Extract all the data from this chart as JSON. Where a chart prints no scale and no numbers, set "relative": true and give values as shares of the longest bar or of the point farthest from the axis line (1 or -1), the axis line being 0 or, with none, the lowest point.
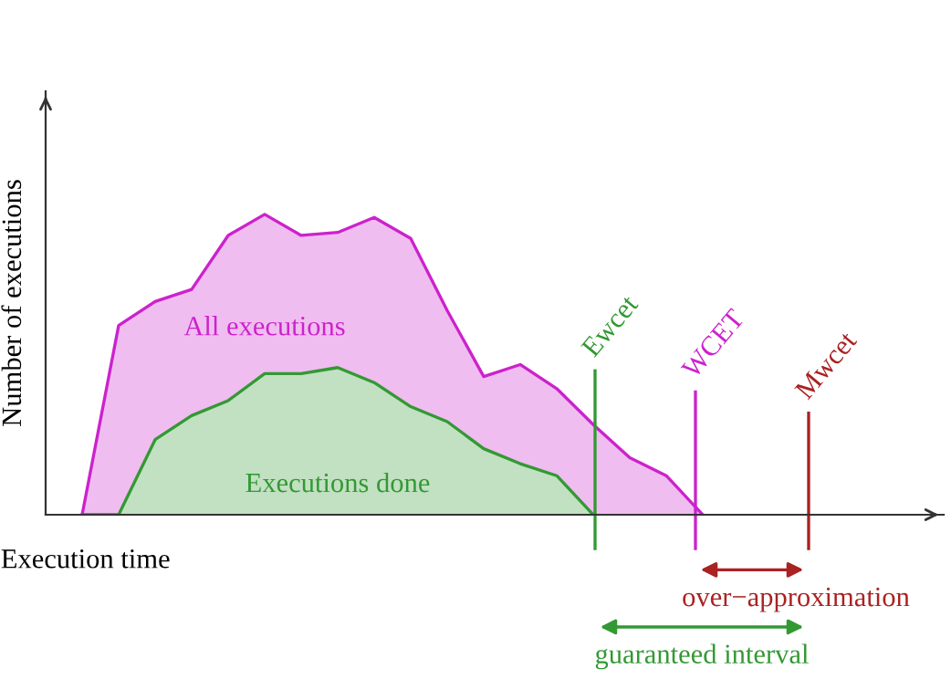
{
  "chart_data": {
    "type": "area",
    "relative": true,
    "xlabel": "Execution time",
    "ylabel": "Number of executions",
    "categories": [
      null,
      null,
      null,
      null,
      null,
      null,
      null,
      null,
      null,
      null,
      null,
      null,
      null,
      null,
      null,
      null,
      null,
      null
    ],
    "series": [
      {
        "name": "All executions",
        "color": "#cc22cc",
        "values": [
          0,
          0.63,
          0.71,
          0.75,
          0.93,
          1,
          0.93,
          0.94,
          0.99,
          0.92,
          0.68,
          0.46,
          0.5,
          0.42,
          0.3,
          0.19,
          0.13,
          0
        ]
      },
      {
        "name": "Executions done",
        "color": "#339933",
        "values": [
          0,
          0,
          0.25,
          0.33,
          0.38,
          0.47,
          0.47,
          0.49,
          0.44,
          0.36,
          0.31,
          0.22,
          0.17,
          0.13,
          0,
          null,
          null,
          null
        ]
      }
    ],
    "annotations": [
      "Ewcet",
      "WCET",
      "Mwcet",
      "over−approximation",
      "guaranteed interval"
    ],
    "grid": false
  }
}
